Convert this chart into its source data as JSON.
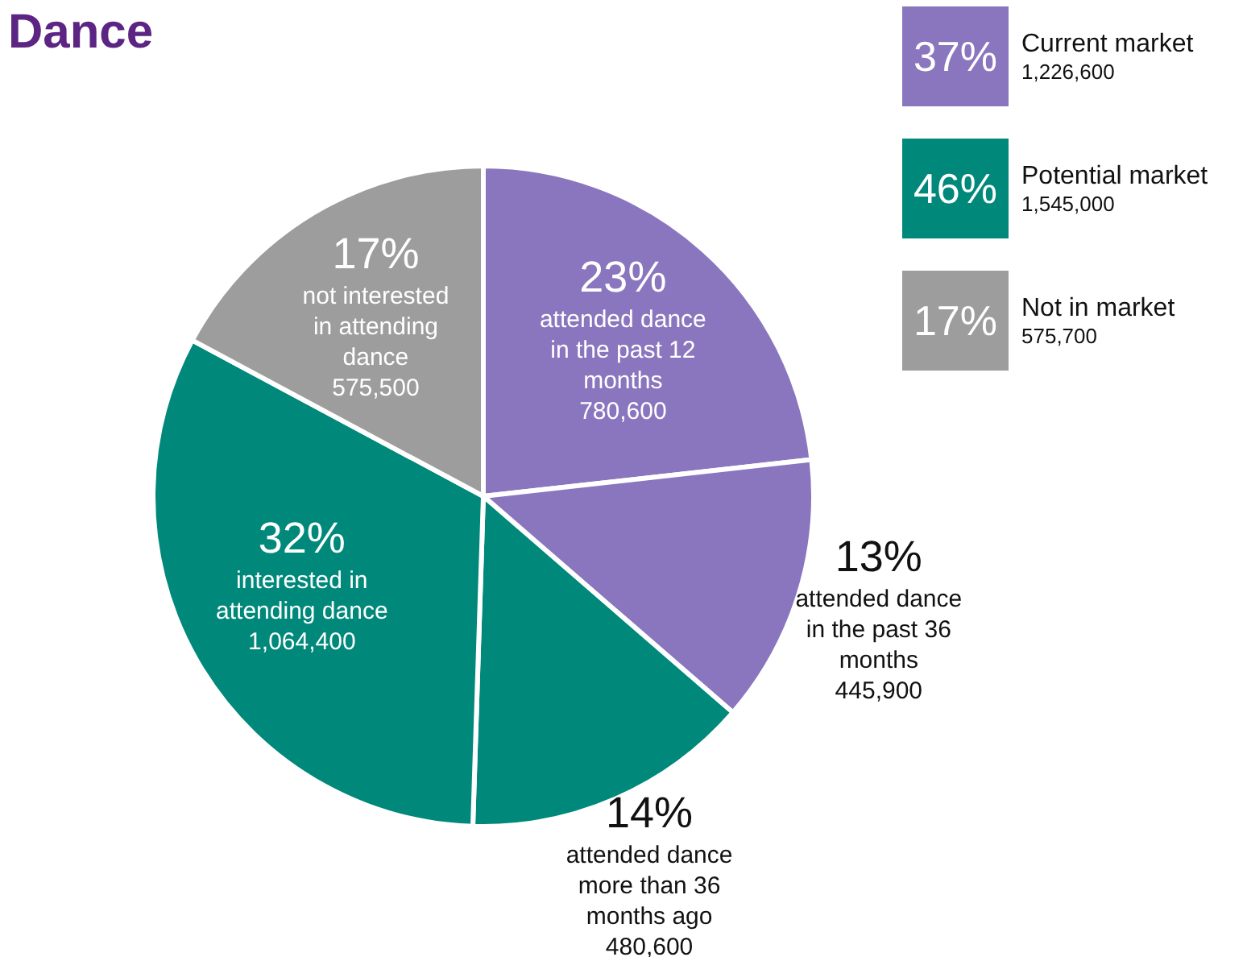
{
  "chart_data": [
    {
      "type": "pie",
      "title": "Dance",
      "categories": [
        "attended dance in the past 12 months",
        "attended dance in the past 36 months",
        "attended dance more than 36 months ago",
        "interested in attending dance",
        "not interested in attending dance"
      ],
      "values": [
        23,
        13,
        14,
        32,
        17
      ],
      "value_labels": [
        "23%",
        "13%",
        "14%",
        "32%",
        "17%"
      ],
      "annotations": [
        "780,600",
        "445,900",
        "480,600",
        "1,064,400",
        "575,500"
      ],
      "colors": [
        "#8a76be",
        "#8a76be",
        "#00897a",
        "#00897a",
        "#9d9d9d"
      ],
      "legend": false
    },
    {
      "type": "other",
      "categories": [
        "Current market",
        "Potential market",
        "Not in market"
      ],
      "values": [
        37,
        46,
        17
      ],
      "value_labels": [
        "37%",
        "46%",
        "17%"
      ],
      "annotations": [
        "1,226,600",
        "1,545,000",
        "575,700"
      ],
      "colors": [
        "#8a76be",
        "#00897a",
        "#9d9d9d"
      ]
    }
  ]
}
